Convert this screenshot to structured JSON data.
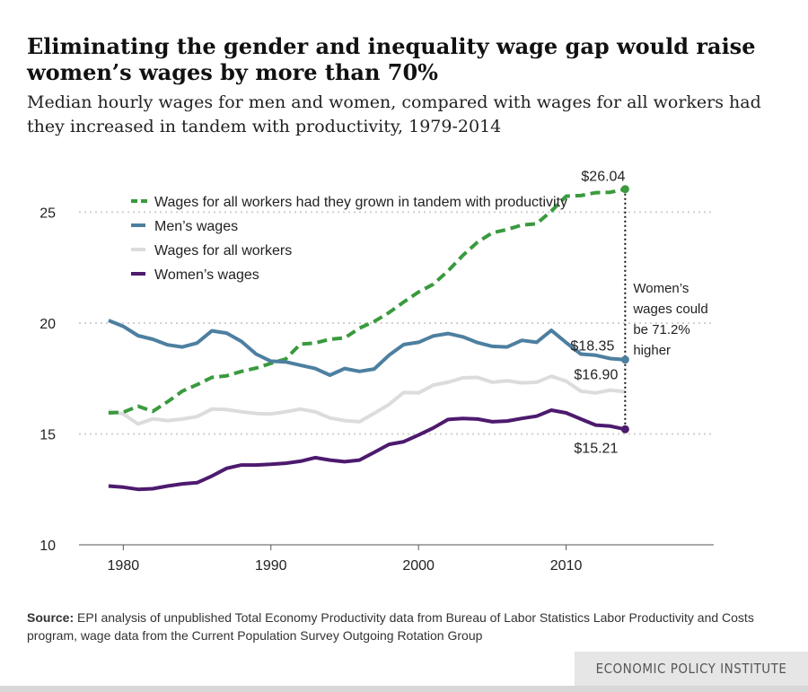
{
  "title": "Eliminating the gender and inequality wage gap would raise women’s wages by more than 70%",
  "subtitle": "Median hourly wages for men and women, compared with wages for all workers had they increased in tandem with productivity, 1979-2014",
  "source_prefix": "Source:",
  "source_text": " EPI analysis of unpublished Total Economy Productivity data from Bureau of Labor Statistics Labor Productivity and Costs program, wage data from the Current Population Survey Outgoing Rotation Group",
  "brand": "ECONOMIC POLICY INSTITUTE",
  "chart_data": {
    "type": "line",
    "title": "",
    "xlabel": "",
    "ylabel": "",
    "xlim": [
      1977,
      2020
    ],
    "ylim": [
      10,
      27
    ],
    "x_ticks": [
      1980,
      1990,
      2000,
      2010
    ],
    "x_tick_labels": [
      "1980",
      "1990",
      "2000",
      "2010"
    ],
    "y_ticks": [
      10,
      15,
      20,
      25
    ],
    "y_tick_labels": [
      "10",
      "15",
      "20",
      "25"
    ],
    "grid": "horizontal dotted",
    "legend_position": "top-left",
    "x": [
      1979,
      1980,
      1981,
      1982,
      1983,
      1984,
      1985,
      1986,
      1987,
      1988,
      1989,
      1990,
      1991,
      1992,
      1993,
      1994,
      1995,
      1996,
      1997,
      1998,
      1999,
      2000,
      2001,
      2002,
      2003,
      2004,
      2005,
      2006,
      2007,
      2008,
      2009,
      2010,
      2011,
      2012,
      2013,
      2014
    ],
    "series": [
      {
        "name": "Wages for all workers had they grown in tandem with productivity",
        "color": "#3a9a3e",
        "dash": "dashed",
        "values": [
          15.95,
          15.98,
          16.25,
          16.02,
          16.45,
          16.93,
          17.22,
          17.55,
          17.62,
          17.82,
          17.97,
          18.18,
          18.38,
          19.05,
          19.1,
          19.27,
          19.33,
          19.77,
          20.07,
          20.47,
          20.95,
          21.4,
          21.75,
          22.35,
          23.05,
          23.65,
          24.07,
          24.22,
          24.42,
          24.48,
          25.05,
          25.72,
          25.75,
          25.88,
          25.9,
          26.04
        ]
      },
      {
        "name": "Men’s wages",
        "color": "#4d7fa0",
        "dash": "solid",
        "values": [
          20.12,
          19.85,
          19.43,
          19.27,
          19.02,
          18.92,
          19.1,
          19.65,
          19.55,
          19.17,
          18.6,
          18.28,
          18.25,
          18.1,
          17.95,
          17.65,
          17.95,
          17.82,
          17.93,
          18.55,
          19.03,
          19.13,
          19.42,
          19.53,
          19.38,
          19.12,
          18.95,
          18.92,
          19.22,
          19.13,
          19.67,
          19.12,
          18.6,
          18.55,
          18.4,
          18.35
        ]
      },
      {
        "name": "Wages for all workers",
        "color": "#dcdcdc",
        "dash": "solid",
        "values": [
          16.03,
          15.9,
          15.45,
          15.68,
          15.6,
          15.67,
          15.78,
          16.12,
          16.1,
          16.0,
          15.92,
          15.9,
          16.0,
          16.12,
          16.0,
          15.72,
          15.6,
          15.55,
          15.93,
          16.33,
          16.87,
          16.85,
          17.2,
          17.33,
          17.53,
          17.55,
          17.33,
          17.4,
          17.3,
          17.33,
          17.6,
          17.38,
          16.93,
          16.85,
          16.98,
          16.9
        ]
      },
      {
        "name": "Women’s wages",
        "color": "#4d1a6e",
        "dash": "solid",
        "values": [
          12.65,
          12.6,
          12.5,
          12.53,
          12.65,
          12.75,
          12.8,
          13.1,
          13.45,
          13.6,
          13.6,
          13.63,
          13.68,
          13.77,
          13.93,
          13.82,
          13.75,
          13.82,
          14.17,
          14.53,
          14.65,
          14.95,
          15.27,
          15.65,
          15.7,
          15.67,
          15.55,
          15.58,
          15.7,
          15.8,
          16.07,
          15.95,
          15.67,
          15.4,
          15.35,
          15.21
        ]
      }
    ],
    "end_labels": {
      "productivity": "$26.04",
      "men": "$18.35",
      "all_workers": "$16.90",
      "women": "$15.21"
    },
    "annotation_lines": [
      "Women’s",
      "wages could",
      "be 71.2%",
      "higher"
    ]
  }
}
